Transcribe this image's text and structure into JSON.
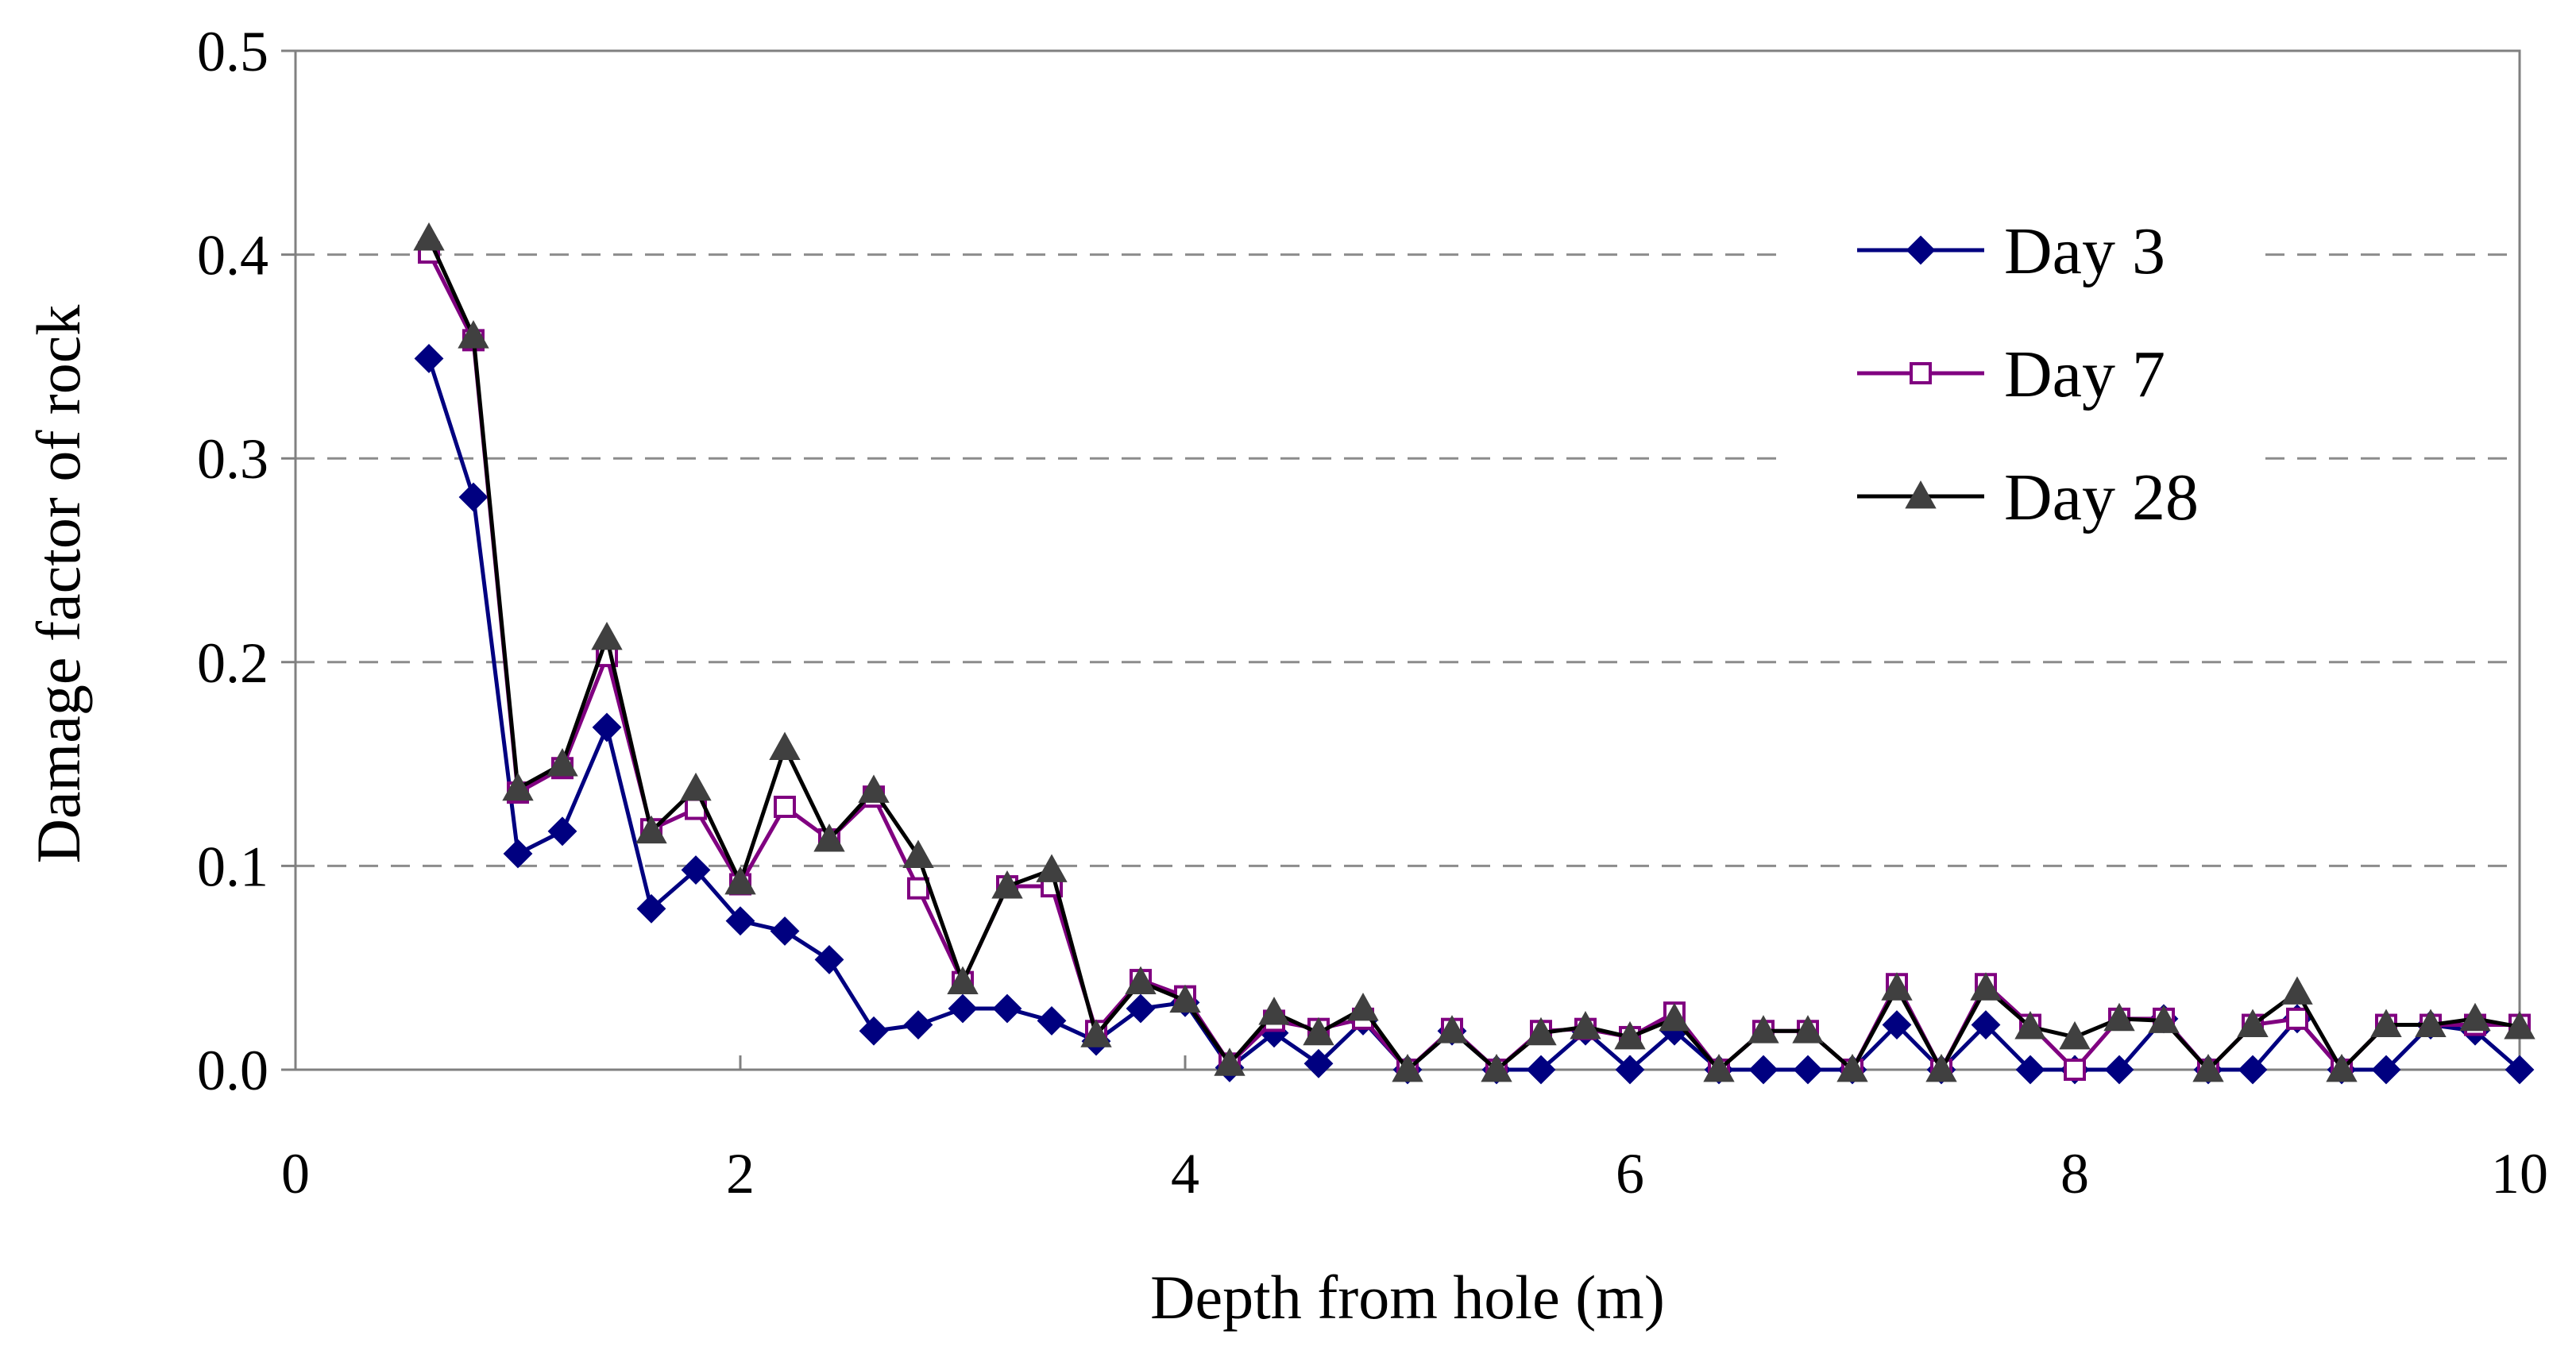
{
  "chart_data": {
    "type": "line",
    "title": "",
    "xlabel": "Depth from hole (m)",
    "ylabel": "Damage factor of rock",
    "xlim": [
      0,
      10
    ],
    "ylim": [
      0,
      0.5
    ],
    "xticks": [
      "0",
      "2",
      "4",
      "6",
      "8",
      "10"
    ],
    "yticks": [
      "0.0",
      "0.1",
      "0.2",
      "0.3",
      "0.4",
      "0.5"
    ],
    "grid": "horizontal dashed",
    "legend_position": "top-right",
    "x": [
      0.6,
      0.8,
      1.0,
      1.2,
      1.4,
      1.6,
      1.8,
      2.0,
      2.2,
      2.4,
      2.6,
      2.8,
      3.0,
      3.2,
      3.4,
      3.6,
      3.8,
      4.0,
      4.2,
      4.4,
      4.6,
      4.8,
      5.0,
      5.2,
      5.4,
      5.6,
      5.8,
      6.0,
      6.2,
      6.4,
      6.6,
      6.8,
      7.0,
      7.2,
      7.4,
      7.6,
      7.8,
      8.0,
      8.2,
      8.4,
      8.6,
      8.8,
      9.0,
      9.2,
      9.4,
      9.6,
      9.8,
      10.0
    ],
    "series": [
      {
        "name": "Day 3",
        "color": "#000080",
        "marker": "diamond",
        "values": [
          0.349,
          0.281,
          0.106,
          0.117,
          0.168,
          0.079,
          0.098,
          0.073,
          0.068,
          0.054,
          0.019,
          0.022,
          0.03,
          0.03,
          0.024,
          0.014,
          0.03,
          0.033,
          0.001,
          0.018,
          0.003,
          0.024,
          0.0,
          0.019,
          0.0,
          0.0,
          0.019,
          0.0,
          0.019,
          0.0,
          0.0,
          0.0,
          0.0,
          0.022,
          0.0,
          0.022,
          0.0,
          0.0,
          0.0,
          0.025,
          0.0,
          0.0,
          0.025,
          0.0,
          0.0,
          0.022,
          0.019,
          0.0
        ]
      },
      {
        "name": "Day 7",
        "color": "#800080",
        "marker": "square-open",
        "values": [
          0.401,
          0.358,
          0.136,
          0.148,
          0.203,
          0.118,
          0.128,
          0.091,
          0.129,
          0.113,
          0.134,
          0.089,
          0.043,
          0.09,
          0.09,
          0.019,
          0.044,
          0.036,
          0.003,
          0.024,
          0.02,
          0.025,
          0.0,
          0.02,
          0.0,
          0.019,
          0.02,
          0.016,
          0.028,
          0.0,
          0.019,
          0.019,
          0.0,
          0.042,
          0.0,
          0.042,
          0.022,
          0.0,
          0.025,
          0.025,
          0.0,
          0.022,
          0.025,
          0.0,
          0.022,
          0.022,
          0.022,
          0.022
        ]
      },
      {
        "name": "Day 28",
        "color": "#000000",
        "marker": "triangle",
        "marker_color": "#404040",
        "values": [
          0.408,
          0.36,
          0.138,
          0.15,
          0.212,
          0.117,
          0.138,
          0.092,
          0.158,
          0.113,
          0.137,
          0.105,
          0.043,
          0.09,
          0.098,
          0.017,
          0.043,
          0.034,
          0.003,
          0.028,
          0.018,
          0.03,
          0.0,
          0.019,
          0.0,
          0.018,
          0.021,
          0.016,
          0.025,
          0.0,
          0.019,
          0.019,
          0.0,
          0.04,
          0.0,
          0.04,
          0.021,
          0.016,
          0.025,
          0.024,
          0.0,
          0.022,
          0.038,
          0.0,
          0.022,
          0.022,
          0.025,
          0.021
        ]
      }
    ]
  }
}
